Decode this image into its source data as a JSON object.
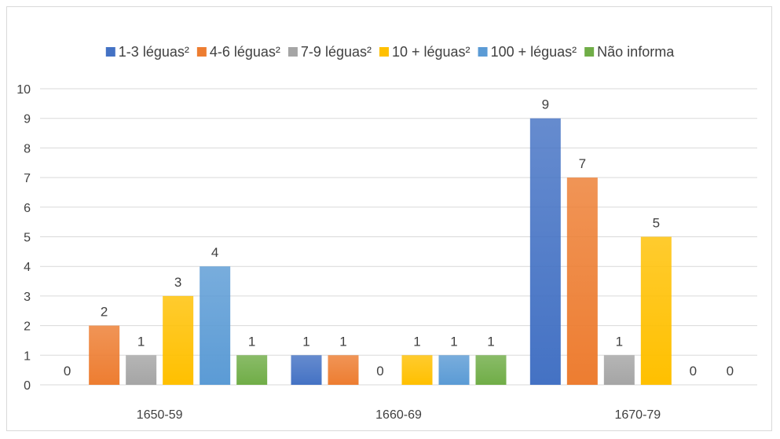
{
  "chart_data": {
    "type": "bar",
    "categories": [
      "1650-59",
      "1660-69",
      "1670-79"
    ],
    "ylim": [
      0,
      10
    ],
    "yticks": [
      "0",
      "1",
      "2",
      "3",
      "4",
      "5",
      "6",
      "7",
      "8",
      "9",
      "10"
    ],
    "grid": true,
    "legend_position": "top",
    "series": [
      {
        "name": "1-3 léguas²",
        "color": "#4472C4",
        "values": [
          0,
          1,
          9
        ]
      },
      {
        "name": "4-6 léguas²",
        "color": "#ED7D31",
        "values": [
          2,
          1,
          7
        ]
      },
      {
        "name": "7-9 léguas²",
        "color": "#A5A5A5",
        "values": [
          1,
          0,
          1
        ]
      },
      {
        "name": "10 + léguas²",
        "color": "#FFC000",
        "values": [
          3,
          1,
          5
        ]
      },
      {
        "name": "100 + léguas²",
        "color": "#5B9BD5",
        "values": [
          4,
          1,
          0
        ]
      },
      {
        "name": "Não informa",
        "color": "#70AD47",
        "values": [
          1,
          1,
          0
        ]
      }
    ],
    "data_labels": [
      [
        "0",
        "1",
        "9"
      ],
      [
        "2",
        "1",
        "7"
      ],
      [
        "1",
        "0",
        "1"
      ],
      [
        "3",
        "1",
        "5"
      ],
      [
        "4",
        "1",
        "0"
      ],
      [
        "1",
        "1",
        "0"
      ]
    ]
  }
}
